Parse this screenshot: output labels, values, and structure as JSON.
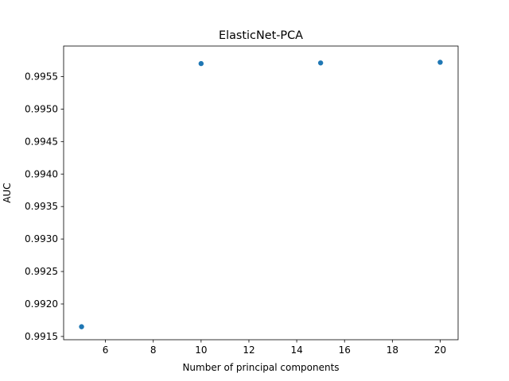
{
  "chart_data": {
    "type": "scatter",
    "title": "ElasticNet-PCA",
    "xlabel": "Number of principal components",
    "ylabel": "AUC",
    "xlim": [
      4.25,
      20.75
    ],
    "ylim": [
      0.99145,
      0.99597
    ],
    "xticks": [
      6,
      8,
      10,
      12,
      14,
      16,
      18,
      20
    ],
    "xtick_labels": [
      "6",
      "8",
      "10",
      "12",
      "14",
      "16",
      "18",
      "20"
    ],
    "yticks": [
      0.9915,
      0.992,
      0.9925,
      0.993,
      0.9935,
      0.994,
      0.9945,
      0.995,
      0.9955
    ],
    "ytick_labels": [
      "0.9915",
      "0.9920",
      "0.9925",
      "0.9930",
      "0.9935",
      "0.9940",
      "0.9945",
      "0.9950",
      "0.9955"
    ],
    "grid": false,
    "series": [
      {
        "color": "#1f77b4",
        "points": [
          {
            "x": 5,
            "y": 0.99165
          },
          {
            "x": 10,
            "y": 0.9957
          },
          {
            "x": 15,
            "y": 0.99571
          },
          {
            "x": 20,
            "y": 0.99572
          }
        ]
      }
    ]
  }
}
